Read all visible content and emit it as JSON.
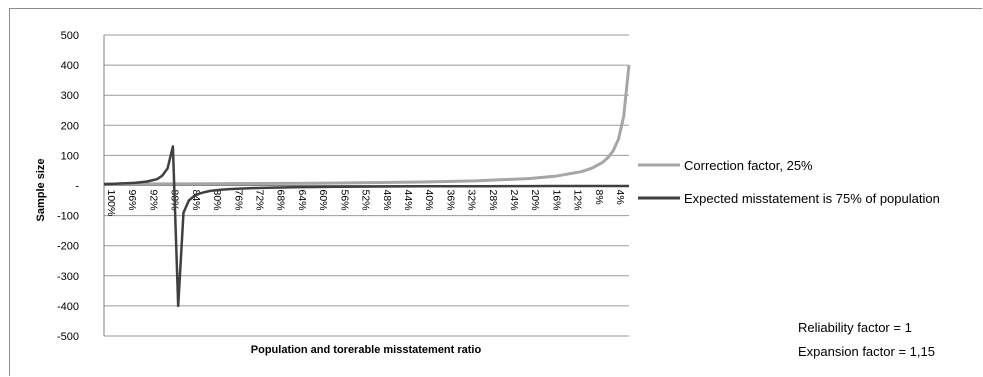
{
  "chart_data": {
    "type": "line",
    "title": "",
    "xlabel": "Population and torerable misstatement ratio",
    "ylabel": "Sample size",
    "ylim": [
      -500,
      500
    ],
    "y_ticks": [
      500,
      400,
      300,
      200,
      100,
      0,
      -100,
      -200,
      -300,
      -400,
      -500
    ],
    "y_tick_labels": [
      "500",
      "400",
      "300",
      "200",
      "100",
      "-",
      "-100",
      "-200",
      "-300",
      "-400",
      "-500"
    ],
    "x_tick_labels": [
      "100%",
      "96%",
      "92%",
      "88%",
      "84%",
      "80%",
      "76%",
      "72%",
      "68%",
      "64%",
      "60%",
      "56%",
      "52%",
      "48%",
      "44%",
      "40%",
      "36%",
      "32%",
      "28%",
      "24%",
      "20%",
      "16%",
      "12%",
      "8%",
      "4%"
    ],
    "x_tick_positions": [
      1.0,
      0.96,
      0.92,
      0.88,
      0.84,
      0.8,
      0.76,
      0.72,
      0.68,
      0.64,
      0.6,
      0.56,
      0.52,
      0.48,
      0.44,
      0.4,
      0.36,
      0.32,
      0.28,
      0.24,
      0.2,
      0.16,
      0.12,
      0.08,
      0.04
    ],
    "x_range": [
      1.0,
      0.01
    ],
    "grid": true,
    "legend_position": "right",
    "series": [
      {
        "name": "Correction factor, 25%",
        "color": "#a6a6a6",
        "x": [
          1.0,
          0.8,
          0.6,
          0.4,
          0.3,
          0.2,
          0.15,
          0.1,
          0.08,
          0.06,
          0.05,
          0.04,
          0.03,
          0.02,
          0.01
        ],
        "values": [
          4.6,
          5.8,
          7.7,
          11.5,
          15.3,
          23.0,
          30.7,
          46.0,
          57.5,
          76.7,
          92.0,
          115.0,
          153.3,
          230.0,
          400.0
        ]
      },
      {
        "name": "Expected misstatement is 75% of population",
        "color": "#404040",
        "x": [
          1.0,
          0.98,
          0.96,
          0.94,
          0.92,
          0.9,
          0.89,
          0.88,
          0.87,
          0.86,
          0.85,
          0.84,
          0.83,
          0.82,
          0.81,
          0.8,
          0.78,
          0.76,
          0.72,
          0.68,
          0.64,
          0.6,
          0.56,
          0.52,
          0.48,
          0.44,
          0.4,
          0.36,
          0.32,
          0.28,
          0.24,
          0.2,
          0.16,
          0.12,
          0.08,
          0.04,
          0.01
        ],
        "values": [
          4.6,
          5.8,
          7.2,
          9.4,
          13.1,
          21.0,
          33.0,
          57.0,
          130.0,
          -400.0,
          -90.0,
          -50.0,
          -35.0,
          -27.0,
          -22.0,
          -18.0,
          -14.0,
          -11.5,
          -8.6,
          -6.9,
          -5.8,
          -4.9,
          -4.3,
          -3.8,
          -3.4,
          -3.1,
          -2.8,
          -2.6,
          -2.4,
          -2.2,
          -2.1,
          -1.9,
          -1.8,
          -1.7,
          -1.6,
          -1.5,
          -1.5
        ]
      }
    ],
    "annotations": [
      "Reliability factor  = 1",
      "Expansion factor = 1,15"
    ]
  }
}
